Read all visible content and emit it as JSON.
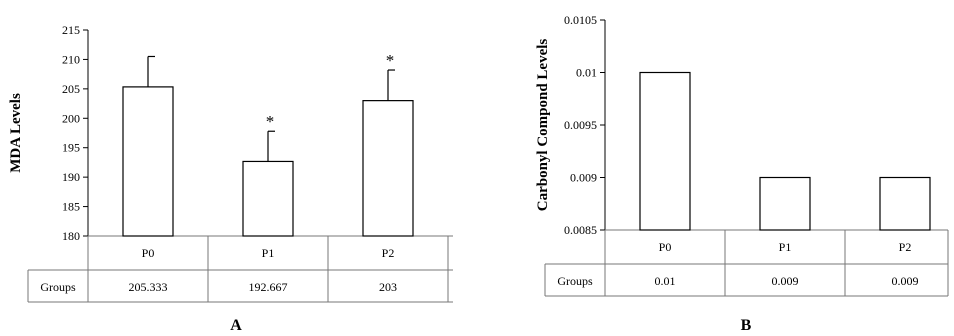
{
  "chart_data": [
    {
      "panel": "A",
      "type": "bar",
      "ylabel": "MDA Levels",
      "ylim": [
        180,
        215
      ],
      "yticks": [
        "180",
        "185",
        "190",
        "195",
        "200",
        "205",
        "210",
        "215"
      ],
      "categories": [
        "P0",
        "P1",
        "P2"
      ],
      "values": [
        205.333,
        192.667,
        203
      ],
      "error_upper": [
        210.5,
        197.8,
        208.2
      ],
      "significance": [
        "",
        "*",
        "*"
      ],
      "table": {
        "row_label": "Groups",
        "cells": [
          "205.333",
          "192.667",
          "203"
        ]
      },
      "grid": false,
      "legend": false
    },
    {
      "panel": "B",
      "type": "bar",
      "ylabel": "Carbonyl Compond Levels",
      "ylim": [
        0.0085,
        0.0105
      ],
      "yticks": [
        "0.0085",
        "0.009",
        "0.0095",
        "0.01",
        "0.0105"
      ],
      "categories": [
        "P0",
        "P1",
        "P2"
      ],
      "values": [
        0.01,
        0.009,
        0.009
      ],
      "table": {
        "row_label": "Groups",
        "cells": [
          "0.01",
          "0.009",
          "0.009"
        ]
      },
      "grid": false,
      "legend": false
    }
  ]
}
